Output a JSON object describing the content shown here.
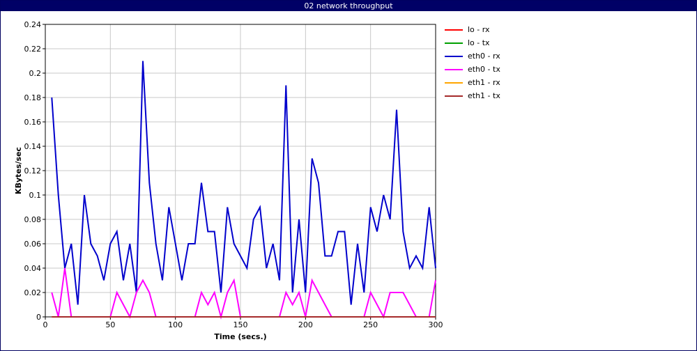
{
  "window": {
    "title": "02 network throughput"
  },
  "chart_data": {
    "type": "line",
    "title": "02 network throughput",
    "xlabel": "Time (secs.)",
    "ylabel": "KBytes/sec",
    "xlim": [
      0,
      300
    ],
    "ylim": [
      0,
      0.24
    ],
    "xticks": [
      0,
      50,
      100,
      150,
      200,
      250,
      300
    ],
    "yticks": [
      0,
      0.02,
      0.04,
      0.06,
      0.08,
      0.1,
      0.12,
      0.14,
      0.16,
      0.18,
      0.2,
      0.22,
      0.24
    ],
    "grid": true,
    "legend_position": "right",
    "series": [
      {
        "name": "lo - rx",
        "color": "#ff0000",
        "x": [
          5,
          300
        ],
        "y": [
          0,
          0
        ]
      },
      {
        "name": "lo - tx",
        "color": "#00a000",
        "x": [
          5,
          300
        ],
        "y": [
          0,
          0
        ]
      },
      {
        "name": "eth0 - rx",
        "color": "#0000cc",
        "x": [
          5,
          10,
          15,
          20,
          25,
          30,
          35,
          40,
          45,
          50,
          55,
          60,
          65,
          70,
          75,
          80,
          85,
          90,
          95,
          100,
          105,
          110,
          115,
          120,
          125,
          130,
          135,
          140,
          145,
          150,
          155,
          160,
          165,
          170,
          175,
          180,
          185,
          190,
          195,
          200,
          205,
          210,
          215,
          220,
          225,
          230,
          235,
          240,
          245,
          250,
          255,
          260,
          265,
          270,
          275,
          280,
          285,
          290,
          295,
          300
        ],
        "y": [
          0.18,
          0.1,
          0.04,
          0.06,
          0.01,
          0.1,
          0.06,
          0.05,
          0.03,
          0.06,
          0.07,
          0.03,
          0.06,
          0.02,
          0.21,
          0.11,
          0.06,
          0.03,
          0.09,
          0.06,
          0.03,
          0.06,
          0.06,
          0.11,
          0.07,
          0.07,
          0.02,
          0.09,
          0.06,
          0.05,
          0.04,
          0.08,
          0.09,
          0.04,
          0.06,
          0.03,
          0.19,
          0.02,
          0.08,
          0.02,
          0.13,
          0.11,
          0.05,
          0.05,
          0.07,
          0.07,
          0.01,
          0.06,
          0.02,
          0.09,
          0.07,
          0.1,
          0.08,
          0.17,
          0.07,
          0.04,
          0.05,
          0.04,
          0.09,
          0.04
        ]
      },
      {
        "name": "eth0 - tx",
        "color": "#ff00ff",
        "x": [
          5,
          10,
          15,
          20,
          25,
          30,
          35,
          40,
          45,
          50,
          55,
          60,
          65,
          70,
          75,
          80,
          85,
          90,
          95,
          100,
          105,
          110,
          115,
          120,
          125,
          130,
          135,
          140,
          145,
          150,
          155,
          160,
          165,
          170,
          175,
          180,
          185,
          190,
          195,
          200,
          205,
          210,
          215,
          220,
          225,
          230,
          235,
          240,
          245,
          250,
          255,
          260,
          265,
          270,
          275,
          280,
          285,
          290,
          295,
          300
        ],
        "y": [
          0.02,
          0,
          0.04,
          0,
          0,
          0,
          0,
          0,
          0,
          0,
          0.02,
          0.01,
          0,
          0.02,
          0.03,
          0.02,
          0,
          0,
          0,
          0,
          0,
          0,
          0,
          0.02,
          0.01,
          0.02,
          0,
          0.02,
          0.03,
          0,
          0,
          0,
          0,
          0,
          0,
          0,
          0.02,
          0.01,
          0.02,
          0,
          0.03,
          0.02,
          0.01,
          0,
          0,
          0,
          0,
          0,
          0,
          0.02,
          0.01,
          0,
          0.02,
          0.02,
          0.02,
          0.01,
          0,
          0,
          0,
          0.03
        ]
      },
      {
        "name": "eth1 - rx",
        "color": "#ffa500",
        "x": [
          5,
          300
        ],
        "y": [
          0,
          0
        ]
      },
      {
        "name": "eth1 - tx",
        "color": "#a52a2a",
        "x": [
          5,
          300
        ],
        "y": [
          0,
          0
        ]
      }
    ]
  }
}
